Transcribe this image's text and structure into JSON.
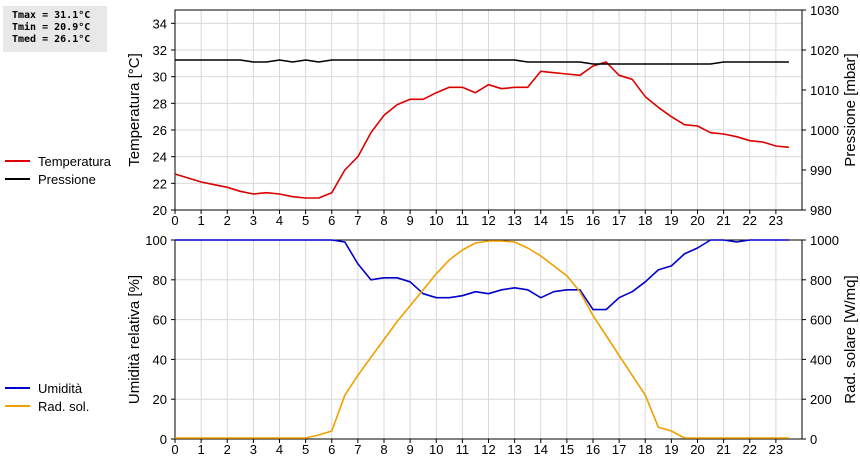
{
  "stats": {
    "tmax": "Tmax = 31.1°C",
    "tmin": "Tmin = 20.9°C",
    "tmed": "Tmed = 26.1°C"
  },
  "chart_data": [
    {
      "type": "line",
      "x_ticks": [
        0,
        1,
        2,
        3,
        4,
        5,
        6,
        7,
        8,
        9,
        10,
        11,
        12,
        13,
        14,
        15,
        16,
        17,
        18,
        19,
        20,
        21,
        22,
        23
      ],
      "xlim": [
        0,
        24
      ],
      "ylabel": "Temperatura [°C]",
      "ylim": [
        20,
        35
      ],
      "y_ticks": [
        20,
        22,
        24,
        26,
        28,
        30,
        32,
        34
      ],
      "y2label": "Pressione [mbar]",
      "y2lim": [
        980,
        1030
      ],
      "y2_ticks": [
        980,
        990,
        1000,
        1010,
        1020,
        1030
      ],
      "grid": true,
      "legend_position": "left",
      "series": [
        {
          "name": "Temperatura",
          "color": "#dd0000",
          "axis": "left",
          "x": [
            0,
            0.5,
            1,
            1.5,
            2,
            2.5,
            3,
            3.5,
            4,
            4.5,
            5,
            5.5,
            6,
            6.5,
            7,
            7.5,
            8,
            8.5,
            9,
            9.5,
            10,
            10.5,
            11,
            11.5,
            12,
            12.5,
            13,
            13.5,
            14,
            14.5,
            15,
            15.5,
            16,
            16.5,
            17,
            17.5,
            18,
            18.5,
            19,
            19.5,
            20,
            20.5,
            21,
            21.5,
            22,
            22.5,
            23,
            23.5
          ],
          "values": [
            22.7,
            22.4,
            22.1,
            21.9,
            21.7,
            21.4,
            21.2,
            21.3,
            21.2,
            21.0,
            20.9,
            20.9,
            21.3,
            23.0,
            24.0,
            25.8,
            27.1,
            27.9,
            28.3,
            28.3,
            28.8,
            29.2,
            29.2,
            28.8,
            29.4,
            29.1,
            29.2,
            29.2,
            30.4,
            30.3,
            30.2,
            30.1,
            30.8,
            31.1,
            30.1,
            29.8,
            28.5,
            27.7,
            27.0,
            26.4,
            26.3,
            25.8,
            25.7,
            25.5,
            25.2,
            25.1,
            24.8,
            24.7
          ]
        },
        {
          "name": "Pressione",
          "color": "#000000",
          "axis": "right",
          "x": [
            0,
            1,
            2,
            2.5,
            3,
            3.5,
            4,
            4.5,
            5,
            5.5,
            6,
            7,
            8,
            9,
            10,
            11,
            12,
            13,
            13.5,
            14,
            15,
            15.5,
            16,
            17,
            18,
            19,
            20,
            20.5,
            21,
            22,
            23,
            23.5
          ],
          "values": [
            1017.5,
            1017.5,
            1017.5,
            1017.5,
            1017.0,
            1017.0,
            1017.5,
            1017.0,
            1017.5,
            1017.0,
            1017.5,
            1017.5,
            1017.5,
            1017.5,
            1017.5,
            1017.5,
            1017.5,
            1017.5,
            1017.0,
            1017.0,
            1017.0,
            1017.0,
            1016.5,
            1016.5,
            1016.5,
            1016.5,
            1016.5,
            1016.5,
            1017.0,
            1017.0,
            1017.0,
            1017.0
          ]
        }
      ]
    },
    {
      "type": "line",
      "x_ticks": [
        0,
        1,
        2,
        3,
        4,
        5,
        6,
        7,
        8,
        9,
        10,
        11,
        12,
        13,
        14,
        15,
        16,
        17,
        18,
        19,
        20,
        21,
        22,
        23
      ],
      "xlim": [
        0,
        24
      ],
      "ylabel": "Umidità relativa [%]",
      "ylim": [
        0,
        100
      ],
      "y_ticks": [
        0,
        20,
        40,
        60,
        80,
        100
      ],
      "y2label": "Rad. solare [W/mq]",
      "y2lim": [
        0,
        1000
      ],
      "y2_ticks": [
        0,
        200,
        400,
        600,
        800,
        1000
      ],
      "grid": true,
      "legend_position": "left",
      "series": [
        {
          "name": "Umidità",
          "color": "#0000cc",
          "axis": "left",
          "x": [
            0,
            1,
            2,
            3,
            4,
            5,
            6,
            6.5,
            7,
            7.5,
            8,
            8.5,
            9,
            9.5,
            10,
            10.5,
            11,
            11.5,
            12,
            12.5,
            13,
            13.5,
            14,
            14.5,
            15,
            15.5,
            16,
            16.5,
            17,
            17.5,
            18,
            18.5,
            19,
            19.5,
            20,
            20.5,
            21,
            21.5,
            22,
            23,
            23.5
          ],
          "values": [
            100,
            100,
            100,
            100,
            100,
            100,
            100,
            99,
            88,
            80,
            81,
            81,
            79,
            73,
            71,
            71,
            72,
            74,
            73,
            75,
            76,
            75,
            71,
            74,
            75,
            75,
            65,
            65,
            71,
            74,
            79,
            85,
            87,
            93,
            96,
            100,
            100,
            99,
            100,
            100,
            100
          ]
        },
        {
          "name": "Rad. sol.",
          "color": "#f0a000",
          "axis": "right",
          "x": [
            0,
            1,
            2,
            3,
            4,
            5,
            5.5,
            6,
            6.5,
            7,
            7.5,
            8,
            8.5,
            9,
            9.5,
            10,
            10.5,
            11,
            11.5,
            12,
            12.5,
            13,
            13.5,
            14,
            14.5,
            15,
            15.5,
            16,
            16.5,
            17,
            17.5,
            18,
            18.5,
            19,
            19.5,
            20,
            21,
            22,
            23,
            23.5
          ],
          "values": [
            5,
            5,
            5,
            5,
            5,
            5,
            20,
            40,
            220,
            320,
            410,
            500,
            590,
            670,
            750,
            830,
            900,
            950,
            985,
            995,
            995,
            990,
            960,
            920,
            870,
            820,
            740,
            620,
            520,
            420,
            320,
            220,
            60,
            40,
            5,
            5,
            5,
            5,
            5,
            5
          ]
        }
      ]
    }
  ]
}
